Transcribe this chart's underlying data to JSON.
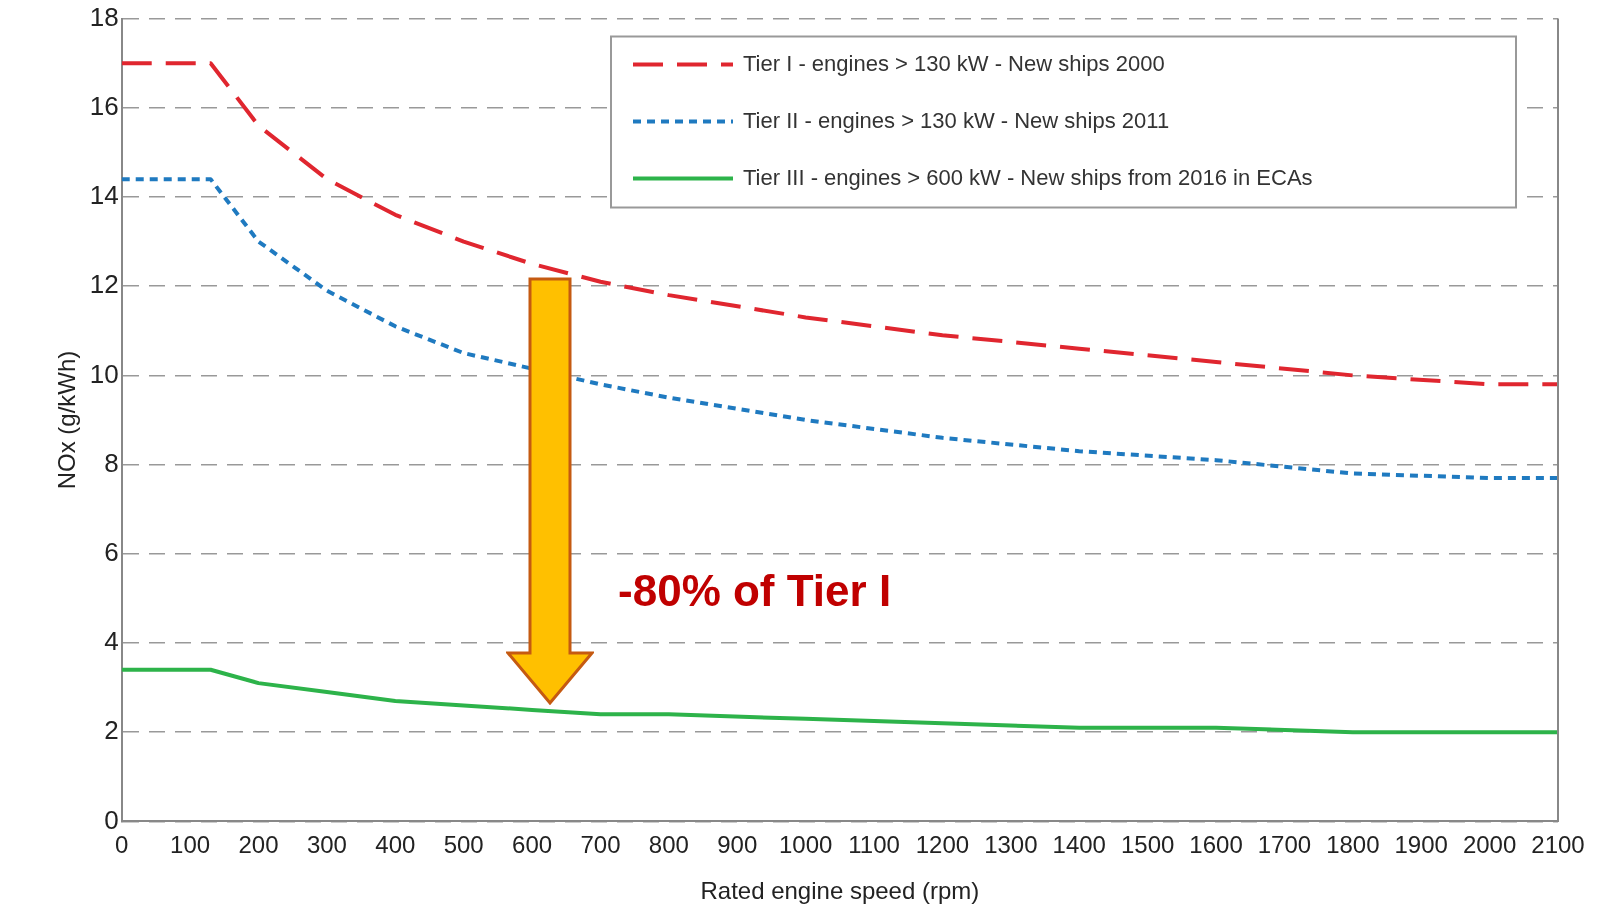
{
  "chart_data": {
    "type": "line",
    "xlabel": "Rated engine speed (rpm)",
    "ylabel": "NOx (g/kWh)",
    "x": [
      0,
      130,
      200,
      300,
      400,
      500,
      600,
      700,
      800,
      1000,
      1200,
      1400,
      1600,
      1800,
      2000,
      2100
    ],
    "series": [
      {
        "name": "Tier I - engines > 130 kW - New ships 2000",
        "color": "#e0262f",
        "line_style": "dashed",
        "values": [
          17,
          17,
          15.6,
          14.4,
          13.6,
          13.0,
          12.5,
          12.1,
          11.8,
          11.3,
          10.9,
          10.6,
          10.3,
          10.0,
          9.8,
          9.8
        ]
      },
      {
        "name": "Tier II - engines > 130 kW - New ships 2011",
        "color": "#1f7ac0",
        "line_style": "dotted",
        "values": [
          14.4,
          14.4,
          13.0,
          11.9,
          11.1,
          10.5,
          null,
          9.8,
          9.5,
          9.0,
          8.6,
          8.3,
          8.1,
          7.8,
          7.7,
          7.7
        ]
      },
      {
        "name": "Tier III - engines > 600 kW - New ships from 2016 in ECAs",
        "color": "#2db34a",
        "line_style": "solid",
        "values": [
          3.4,
          3.4,
          3.1,
          2.9,
          2.7,
          2.6,
          2.5,
          2.4,
          2.4,
          2.3,
          2.2,
          2.1,
          2.1,
          2.0,
          2.0,
          2.0
        ]
      }
    ],
    "xlim": [
      0,
      2100
    ],
    "xticks": [
      0,
      100,
      200,
      300,
      400,
      500,
      600,
      700,
      800,
      900,
      1000,
      1100,
      1200,
      1300,
      1400,
      1500,
      1600,
      1700,
      1800,
      1900,
      2000,
      2100
    ],
    "ylim": [
      0,
      18
    ],
    "yticks": [
      0,
      2,
      4,
      6,
      8,
      10,
      12,
      14,
      16,
      18
    ],
    "grid": "y",
    "legend": "top right",
    "marker": "none",
    "annotations": [
      "-80% of Tier I"
    ]
  }
}
